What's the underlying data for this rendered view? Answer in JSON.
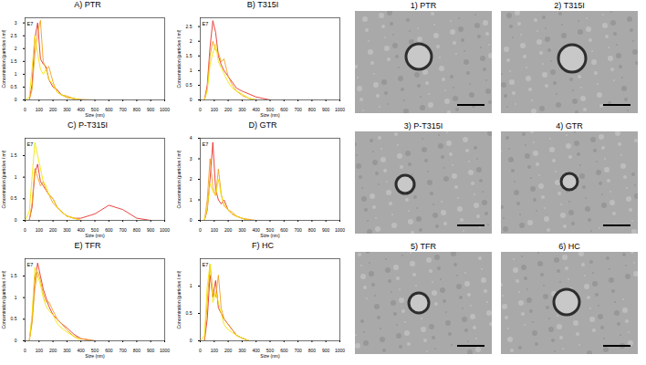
{
  "chart_data": [
    {
      "type": "line",
      "title": "A) PTR",
      "x_label": "Size (nm)",
      "y_label": "Concentration (particles / ml)",
      "annotations": [
        "E7"
      ],
      "x": [
        0,
        30,
        50,
        70,
        90,
        110,
        130,
        150,
        170,
        200,
        230,
        260,
        300,
        350,
        400,
        500,
        600,
        700,
        800,
        900,
        1000
      ],
      "xlim": [
        0,
        1000
      ],
      "xticks": [
        0,
        100,
        200,
        300,
        400,
        500,
        600,
        700,
        800,
        900,
        1000
      ],
      "ylim": [
        0,
        3.2
      ],
      "yticks": [
        0,
        0.5,
        1,
        1.5,
        2,
        2.5,
        3
      ],
      "grid": false,
      "series": [
        {
          "color": "#e8312a",
          "values": [
            0,
            0,
            0.6,
            2.4,
            3.0,
            1.6,
            1.4,
            1.3,
            0.8,
            0.5,
            0.4,
            0.2,
            0.1,
            0.05,
            0,
            0,
            0,
            0,
            0,
            0,
            0
          ]
        },
        {
          "color": "#f0a020",
          "values": [
            0,
            0,
            0.4,
            1.8,
            2.6,
            3.1,
            1.5,
            1.2,
            1.3,
            0.7,
            0.3,
            0.2,
            0.15,
            0.05,
            0.02,
            0,
            0,
            0,
            0,
            0,
            0
          ]
        },
        {
          "color": "#f2e600",
          "values": [
            0,
            0.1,
            1.2,
            2.5,
            1.8,
            1.2,
            1.0,
            1.2,
            0.8,
            0.6,
            0.3,
            0.2,
            0.1,
            0.05,
            0,
            0,
            0,
            0,
            0,
            0,
            0
          ]
        }
      ]
    },
    {
      "type": "line",
      "title": "B) T315I",
      "x_label": "Size (nm)",
      "y_label": "Concentration (particles / ml)",
      "annotations": [
        "E7"
      ],
      "x": [
        0,
        30,
        50,
        70,
        90,
        110,
        130,
        150,
        170,
        200,
        230,
        260,
        300,
        350,
        400,
        500,
        600,
        700,
        800,
        900,
        1000
      ],
      "xlim": [
        0,
        1000
      ],
      "xticks": [
        0,
        100,
        200,
        300,
        400,
        500,
        600,
        700,
        800,
        900,
        1000
      ],
      "ylim": [
        0,
        2.8
      ],
      "yticks": [
        0,
        0.5,
        1,
        1.5,
        2,
        2.5
      ],
      "grid": false,
      "series": [
        {
          "color": "#e8312a",
          "values": [
            0,
            0,
            0.5,
            1.8,
            2.7,
            2.3,
            1.5,
            1.2,
            1.0,
            0.8,
            0.6,
            0.4,
            0.3,
            0.2,
            0.1,
            0,
            0,
            0,
            0,
            0,
            0
          ]
        },
        {
          "color": "#f0a020",
          "values": [
            0,
            0,
            0.4,
            1.5,
            2.0,
            1.7,
            1.6,
            1.3,
            1.4,
            0.8,
            0.5,
            0.3,
            0.15,
            0.05,
            0,
            0,
            0,
            0,
            0,
            0,
            0
          ]
        },
        {
          "color": "#f2e600",
          "values": [
            0,
            0,
            0.3,
            1.2,
            1.6,
            1.9,
            1.3,
            1.1,
            0.9,
            0.6,
            0.4,
            0.3,
            0.2,
            0.05,
            0,
            0,
            0,
            0,
            0,
            0,
            0
          ]
        }
      ]
    },
    {
      "type": "line",
      "title": "C) P-T315I",
      "x_label": "Size (nm)",
      "y_label": "Concentration (particles / ml)",
      "annotations": [
        "E7"
      ],
      "x": [
        0,
        30,
        50,
        70,
        90,
        110,
        130,
        150,
        170,
        200,
        230,
        260,
        300,
        350,
        400,
        500,
        600,
        700,
        800,
        900,
        1000
      ],
      "xlim": [
        0,
        1000
      ],
      "xticks": [
        0,
        100,
        200,
        300,
        400,
        500,
        600,
        700,
        800,
        900,
        1000
      ],
      "ylim": [
        0,
        1.9
      ],
      "yticks": [
        0,
        0.5,
        1,
        1.5
      ],
      "grid": false,
      "series": [
        {
          "color": "#e8312a",
          "values": [
            0,
            0,
            0.3,
            1.1,
            1.3,
            0.9,
            0.8,
            0.7,
            0.6,
            0.5,
            0.3,
            0.2,
            0.1,
            0.05,
            0.05,
            0.15,
            0.35,
            0.25,
            0.05,
            0,
            0
          ]
        },
        {
          "color": "#f0a020",
          "values": [
            0,
            0,
            0.4,
            1.2,
            1.0,
            0.8,
            0.9,
            0.7,
            0.6,
            0.4,
            0.3,
            0.2,
            0.1,
            0.05,
            0,
            0,
            0,
            0,
            0,
            0,
            0
          ]
        },
        {
          "color": "#f2e600",
          "values": [
            0,
            0.2,
            1.0,
            1.8,
            1.5,
            1.2,
            0.9,
            0.8,
            0.6,
            0.5,
            0.3,
            0.2,
            0.1,
            0.05,
            0,
            0,
            0,
            0,
            0,
            0,
            0
          ]
        }
      ]
    },
    {
      "type": "line",
      "title": "D) GTR",
      "x_label": "Size (nm)",
      "y_label": "Concentration (particles / ml)",
      "annotations": [
        "E7"
      ],
      "x": [
        0,
        30,
        50,
        70,
        90,
        110,
        130,
        150,
        170,
        200,
        230,
        260,
        300,
        350,
        400,
        500,
        600,
        700,
        800,
        900,
        1000
      ],
      "xlim": [
        0,
        1000
      ],
      "xticks": [
        0,
        100,
        200,
        300,
        400,
        500,
        600,
        700,
        800,
        900,
        1000
      ],
      "ylim": [
        0,
        4
      ],
      "yticks": [
        0,
        1,
        2,
        3,
        4
      ],
      "grid": false,
      "series": [
        {
          "color": "#e8312a",
          "values": [
            0,
            0,
            0.5,
            2.0,
            3.8,
            1.5,
            1.0,
            0.8,
            1.0,
            0.5,
            0.3,
            0.2,
            0.1,
            0,
            0,
            0,
            0,
            0,
            0,
            0,
            0
          ]
        },
        {
          "color": "#f0a020",
          "values": [
            0,
            0,
            1.0,
            3.0,
            1.6,
            1.2,
            2.5,
            1.3,
            0.7,
            0.5,
            0.4,
            0.2,
            0.1,
            0.05,
            0,
            0,
            0,
            0,
            0,
            0,
            0
          ]
        },
        {
          "color": "#f2e600",
          "values": [
            0,
            0,
            0.6,
            1.8,
            1.4,
            1.2,
            2.0,
            1.2,
            0.8,
            0.5,
            0.3,
            0.2,
            0.1,
            0,
            0,
            0,
            0,
            0,
            0,
            0,
            0
          ]
        }
      ]
    },
    {
      "type": "line",
      "title": "E) TFR",
      "x_label": "Size (nm)",
      "y_label": "Concentration (particles / ml)",
      "annotations": [
        "E7"
      ],
      "x": [
        0,
        30,
        50,
        70,
        90,
        110,
        130,
        150,
        170,
        200,
        230,
        260,
        300,
        350,
        400,
        500,
        600,
        700,
        800,
        900,
        1000
      ],
      "xlim": [
        0,
        1000
      ],
      "xticks": [
        0,
        100,
        200,
        300,
        400,
        500,
        600,
        700,
        800,
        900,
        1000
      ],
      "ylim": [
        0,
        1.9
      ],
      "yticks": [
        0,
        0.5,
        1,
        1.5
      ],
      "grid": false,
      "series": [
        {
          "color": "#e8312a",
          "values": [
            0,
            0,
            0.5,
            1.4,
            1.8,
            1.5,
            1.2,
            1.0,
            0.8,
            0.6,
            0.5,
            0.4,
            0.3,
            0.15,
            0.05,
            0,
            0,
            0,
            0,
            0,
            0
          ]
        },
        {
          "color": "#f0a020",
          "values": [
            0,
            0,
            0.4,
            1.2,
            1.6,
            1.4,
            1.1,
            0.9,
            0.9,
            0.7,
            0.5,
            0.4,
            0.25,
            0.1,
            0.05,
            0,
            0,
            0,
            0,
            0,
            0
          ]
        },
        {
          "color": "#f2e600",
          "values": [
            0,
            0,
            0.6,
            1.7,
            1.5,
            1.3,
            1.0,
            0.8,
            0.7,
            0.6,
            0.4,
            0.3,
            0.2,
            0.1,
            0,
            0,
            0,
            0,
            0,
            0,
            0
          ]
        }
      ]
    },
    {
      "type": "line",
      "title": "F) HC",
      "x_label": "Size (nm)",
      "y_label": "Concentration (particles / ml)",
      "annotations": [
        "E7"
      ],
      "x": [
        0,
        30,
        50,
        70,
        90,
        110,
        130,
        150,
        170,
        200,
        230,
        260,
        300,
        350,
        400,
        500,
        600,
        700,
        800,
        900,
        1000
      ],
      "xlim": [
        0,
        1000
      ],
      "xticks": [
        0,
        100,
        200,
        300,
        400,
        500,
        600,
        700,
        800,
        900,
        1000
      ],
      "ylim": [
        0,
        1.5
      ],
      "yticks": [
        0,
        0.5,
        1
      ],
      "grid": false,
      "series": [
        {
          "color": "#e8312a",
          "values": [
            0,
            0,
            0.4,
            1.2,
            0.8,
            1.1,
            0.6,
            0.5,
            0.4,
            0.3,
            0.2,
            0.1,
            0.05,
            0,
            0,
            0,
            0,
            0,
            0,
            0,
            0
          ]
        },
        {
          "color": "#f0a020",
          "values": [
            0,
            0,
            0.7,
            1.4,
            0.9,
            0.8,
            1.2,
            0.6,
            0.4,
            0.3,
            0.2,
            0.1,
            0.05,
            0,
            0,
            0,
            0,
            0,
            0,
            0,
            0
          ]
        },
        {
          "color": "#f2e600",
          "values": [
            0,
            0.1,
            1.0,
            1.4,
            0.7,
            0.9,
            0.7,
            0.5,
            0.3,
            0.2,
            0.15,
            0.1,
            0.05,
            0,
            0,
            0,
            0,
            0,
            0,
            0,
            0
          ]
        }
      ]
    }
  ],
  "micrographs": [
    {
      "title": "1) PTR"
    },
    {
      "title": "2) T315I"
    },
    {
      "title": "3) P-T315I"
    },
    {
      "title": "4) GTR"
    },
    {
      "title": "5) TFR"
    },
    {
      "title": "6) HC"
    }
  ]
}
